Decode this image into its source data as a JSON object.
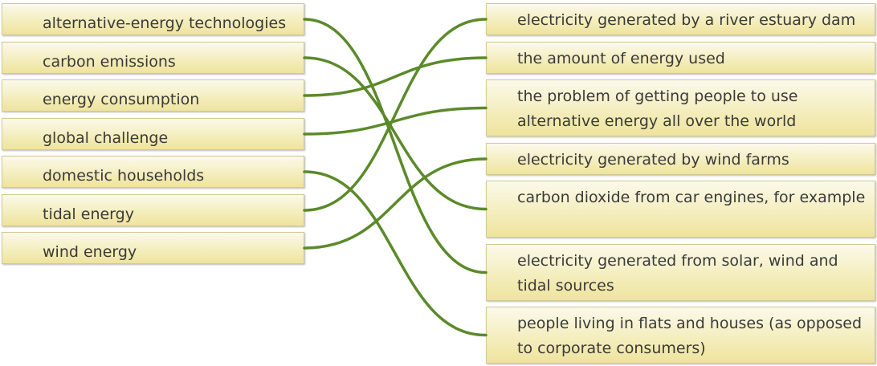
{
  "terms": [
    {
      "label": "alternative-energy technologies"
    },
    {
      "label": "carbon emissions"
    },
    {
      "label": "energy consumption"
    },
    {
      "label": "global challenge"
    },
    {
      "label": "domestic households"
    },
    {
      "label": "tidal energy"
    },
    {
      "label": "wind energy"
    }
  ],
  "definitions": [
    {
      "label": "electricity generated by a river estuary dam"
    },
    {
      "label": "the amount of energy used"
    },
    {
      "label": "the problem of getting people to use alternative energy all over the world"
    },
    {
      "label": "electricity generated by wind farms"
    },
    {
      "label": "carbon dioxide from car engines, for example"
    },
    {
      "label": "electricity generated from solar, wind and tidal sources"
    },
    {
      "label": "people living in flats and houses (as opposed to corporate consumers)"
    }
  ],
  "matches": [
    {
      "term": 0,
      "definition": 5
    },
    {
      "term": 1,
      "definition": 4
    },
    {
      "term": 2,
      "definition": 1
    },
    {
      "term": 3,
      "definition": 2
    },
    {
      "term": 4,
      "definition": 6
    },
    {
      "term": 5,
      "definition": 0
    },
    {
      "term": 6,
      "definition": 3
    }
  ],
  "colors": {
    "connector": "#5b8a2a",
    "card_border": "#d2c992",
    "card_fill": "#f4eebe"
  }
}
